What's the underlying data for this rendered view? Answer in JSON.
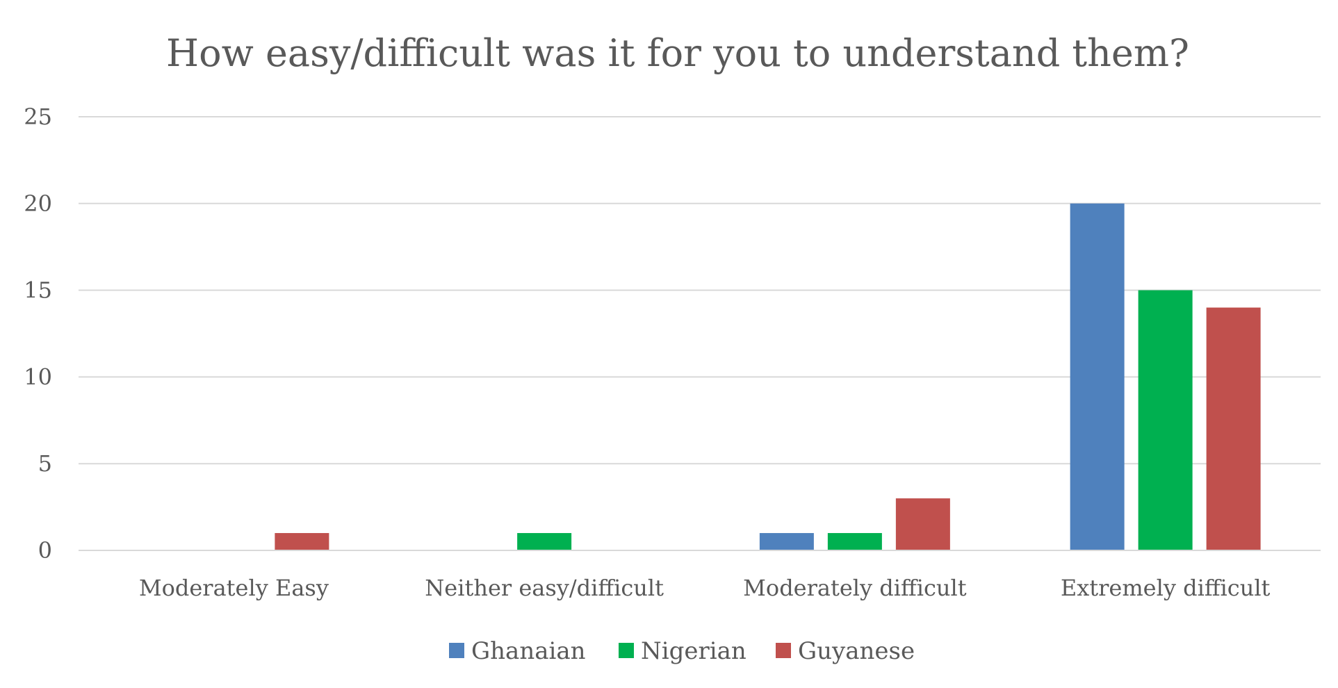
{
  "chart_data": {
    "type": "bar",
    "title": "How easy/difficult was it for you to understand them?",
    "xlabel": "",
    "ylabel": "",
    "categories": [
      "Moderately Easy",
      "Neither easy/difficult",
      "Moderately difficult",
      "Extremely difficult"
    ],
    "series": [
      {
        "name": "Ghanaian",
        "color": "#4f81bd",
        "values": [
          0,
          0,
          1,
          20
        ]
      },
      {
        "name": "Nigerian",
        "color": "#00b050",
        "values": [
          0,
          1,
          1,
          15
        ]
      },
      {
        "name": "Guyanese",
        "color": "#c0504d",
        "values": [
          1,
          0,
          3,
          14
        ]
      }
    ],
    "ylim": [
      0,
      25
    ],
    "yticks": [
      "0",
      "5",
      "10",
      "15",
      "20",
      "25"
    ],
    "grid": true,
    "legend_position": "bottom"
  }
}
